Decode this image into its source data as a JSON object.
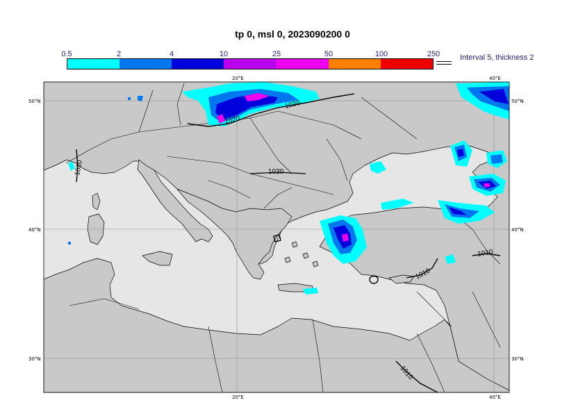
{
  "title": "tp 0, msl 0, 2023090200 0",
  "legend": {
    "ticks": [
      "0.5",
      "2",
      "4",
      "10",
      "25",
      "50",
      "100",
      "250"
    ],
    "colors": [
      "#00ffff",
      "#0077ee",
      "#0000dd",
      "#bb00ee",
      "#ee00ee",
      "#ff8000",
      "#ee0000"
    ],
    "interval_label": "Interval 5, thickness 2"
  },
  "map": {
    "lon_labels": [
      "20°E",
      "40°E"
    ],
    "lat_labels": [
      "50°N",
      "40°N",
      "30°N"
    ],
    "contour_labels": [
      "1020",
      "1020",
      "1020",
      "1020",
      "1010",
      "1010",
      "1010"
    ],
    "colors": {
      "land": "#c9c9c9",
      "sea": "#e6e6e6",
      "border": "#000000",
      "grid": "#888888"
    }
  }
}
